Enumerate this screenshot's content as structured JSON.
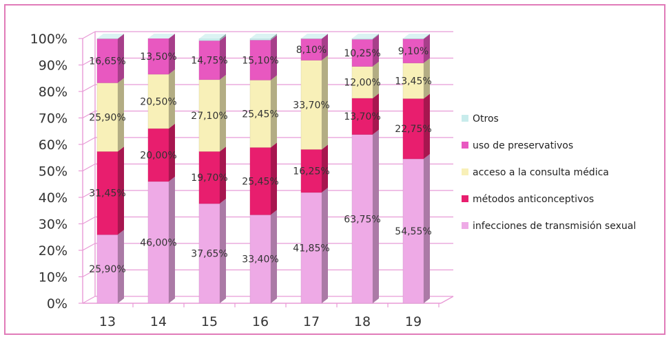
{
  "chart_data": {
    "type": "bar",
    "stacked": true,
    "percent": true,
    "categories": [
      "13",
      "14",
      "15",
      "16",
      "17",
      "18",
      "19"
    ],
    "yticks": [
      "0%",
      "10%",
      "20%",
      "30%",
      "40%",
      "50%",
      "60%",
      "70%",
      "80%",
      "90%",
      "100%"
    ],
    "ylim": [
      0,
      100
    ],
    "legend_position": "right",
    "series": [
      {
        "name": "infecciones de transmisión sexual",
        "color": "#eeaae6",
        "values": [
          25.9,
          46.0,
          37.65,
          33.4,
          41.85,
          63.75,
          54.55
        ],
        "labels": [
          "25,90%",
          "46,00%",
          "37,65%",
          "33,40%",
          "41,85%",
          "63,75%",
          "54,55%"
        ]
      },
      {
        "name": "métodos anticonceptivos",
        "color": "#e81e6e",
        "values": [
          31.45,
          20.0,
          19.7,
          25.45,
          16.25,
          13.7,
          22.75
        ],
        "labels": [
          "31,45%",
          "20,00%",
          "19,70%",
          "25,45%",
          "16,25%",
          "13,70%",
          "22,75%"
        ]
      },
      {
        "name": "acceso a la consulta médica",
        "color": "#f8f0b8",
        "values": [
          25.9,
          20.5,
          27.1,
          25.45,
          33.7,
          12.0,
          13.45
        ],
        "labels": [
          "25,90%",
          "20,50%",
          "27,10%",
          "25,45%",
          "33,70%",
          "12,00%",
          "13,45%"
        ]
      },
      {
        "name": "uso de preservativos",
        "color": "#e858c0",
        "values": [
          16.65,
          13.5,
          14.75,
          15.1,
          8.1,
          10.25,
          9.1
        ],
        "labels": [
          "16,65%",
          "13,50%",
          "14,75%",
          "15,10%",
          "8,10%",
          "10,25%",
          "9,10%"
        ]
      },
      {
        "name": "Otros",
        "color": "#c8ecec",
        "values": [
          0.1,
          0.0,
          0.75,
          0.6,
          0.1,
          0.3,
          0.15
        ],
        "labels": []
      }
    ]
  }
}
